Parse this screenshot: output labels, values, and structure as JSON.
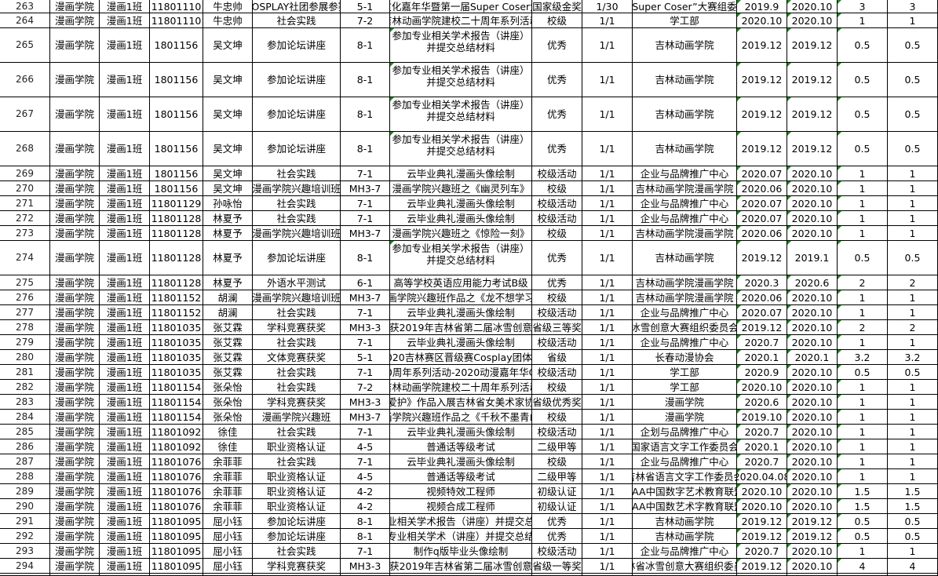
{
  "sheet": {
    "marker_color": "#1a8a1a",
    "rows": [
      [
        "263",
        "漫画学院",
        "漫画1班",
        "11801110",
        "牛忠帅",
        "COSPLAY社团参展参赛",
        "5-1",
        "文化嘉年华暨第一届Super Coser大",
        "国家级金奖",
        "1/30",
        "Super Coser”大赛组委",
        "2019.9",
        "2020.10",
        "3",
        "3"
      ],
      [
        "264",
        "漫画学院",
        "漫画1班",
        "11801110",
        "牛忠帅",
        "社会实践",
        "7-2",
        "吉林动画学院建校二十周年系列活动",
        "校级",
        "1/1",
        "学工部",
        "2020.10",
        "2020.10",
        "1",
        "1"
      ],
      [
        "265",
        "漫画学院",
        "漫画1班",
        "1801156",
        "吴文坤",
        "参加论坛讲座",
        "8-1",
        "参加专业相关学术报告（讲座）\n并提交总结材料",
        "优秀",
        "1/1",
        "吉林动画学院",
        "2019.12",
        "2019.12",
        "0.5",
        "0.5"
      ],
      [
        "266",
        "漫画学院",
        "漫画1班",
        "1801156",
        "吴文坤",
        "参加论坛讲座",
        "8-1",
        "参加专业相关学术报告（讲座）\n并提交总结材料",
        "优秀",
        "1/1",
        "吉林动画学院",
        "2019.12",
        "2019.12",
        "0.5",
        "0.5"
      ],
      [
        "267",
        "漫画学院",
        "漫画1班",
        "1801156",
        "吴文坤",
        "参加论坛讲座",
        "8-1",
        "参加专业相关学术报告（讲座）\n并提交总结材料",
        "优秀",
        "1/1",
        "吉林动画学院",
        "2019.12",
        "2019.12",
        "0.5",
        "0.5"
      ],
      [
        "268",
        "漫画学院",
        "漫画1班",
        "1801156",
        "吴文坤",
        "参加论坛讲座",
        "8-1",
        "参加专业相关学术报告（讲座）\n并提交总结材料",
        "优秀",
        "1/1",
        "吉林动画学院",
        "2019.12",
        "2019.12",
        "0.5",
        "0.5"
      ],
      [
        "269",
        "漫画学院",
        "漫画1班",
        "1801156",
        "吴文坤",
        "社会实践",
        "7-1",
        "云毕业典礼漫画头像绘制",
        "校级活动",
        "1/1",
        "企业与品牌推广中心",
        "2020.07",
        "2020.10",
        "1",
        "1"
      ],
      [
        "270",
        "漫画学院",
        "漫画1班",
        "1801156",
        "吴文坤",
        "漫画学院兴趣培训班",
        "MH3-7",
        "漫画学院兴趣班之《幽灵列车》",
        "校级",
        "1/1",
        "吉林动画学院漫画学院",
        "2020.06",
        "2020.10",
        "1",
        "1"
      ],
      [
        "271",
        "漫画学院",
        "漫画1班",
        "11801129",
        "孙咏怡",
        "社会实践",
        "7-1",
        "云毕业典礼漫画头像绘制",
        "校级活动",
        "1/1",
        "企业与品牌推广中心",
        "2020.07",
        "2020.10",
        "1",
        "1"
      ],
      [
        "272",
        "漫画学院",
        "漫画1班",
        "11801128",
        "林夏予",
        "社会实践",
        "7-1",
        "云毕业典礼漫画头像绘制",
        "校级活动",
        "1/1",
        "企业与品牌推广中心",
        "2020.07",
        "2020.10",
        "1",
        "1"
      ],
      [
        "273",
        "漫画学院",
        "漫画1班",
        "11801128",
        "林夏予",
        "漫画学院兴趣培训班",
        "MH3-7",
        "漫画学院兴趣班之《惊险一刻》",
        "校级",
        "1/1",
        "吉林动画学院漫画学院",
        "2020.06",
        "2020.10",
        "1",
        "1"
      ],
      [
        "274",
        "漫画学院",
        "漫画1班",
        "11801128",
        "林夏予",
        "参加论坛讲座",
        "8-1",
        "参加专业相关学术报告（讲座）\n并提交总结材料",
        "优秀",
        "1/1",
        "吉林动画学院",
        "2019.12",
        "2019.1",
        "0.5",
        "0.5"
      ],
      [
        "275",
        "漫画学院",
        "漫画1班",
        "11801128",
        "林夏予",
        "外语水平测试",
        "6-1",
        "高等学校英语应用能力考试B级",
        "优秀",
        "1/1",
        "吉林动画学院漫画学院",
        "2020.3",
        "2020.6",
        "2",
        "2"
      ],
      [
        "276",
        "漫画学院",
        "漫画1班",
        "11801152",
        "胡澜",
        "漫画学院兴趣培训班",
        "MH3-7",
        "漫画学院兴趣班作品之《龙不想学习》",
        "校级",
        "1/1",
        "吉林动画学院漫画学院",
        "2020.06",
        "2020.10",
        "1",
        "1"
      ],
      [
        "277",
        "漫画学院",
        "漫画1班",
        "11801152",
        "胡澜",
        "社会实践",
        "7-1",
        "云毕业典礼漫画头像绘制",
        "校级活动",
        "1/1",
        "企业与品牌推广中心",
        "2020.07",
        "2020.10",
        "1",
        "1"
      ],
      [
        "278",
        "漫画学院",
        "漫画1班",
        "11801035",
        "张艾霖",
        "学科竞赛获奖",
        "MH3-3",
        "作品获2019年吉林省第二届冰雪创意大赛",
        "省级三等奖",
        "1/1",
        "冰雪创意大赛组织委员会",
        "2019.12",
        "2020.10",
        "2",
        "2"
      ],
      [
        "279",
        "漫画学院",
        "漫画1班",
        "11801035",
        "张艾霖",
        "社会实践",
        "7-1",
        "云毕业典礼漫画头像绘制",
        "校级活动",
        "1/1",
        "企业与品牌推广中心",
        "2020.7",
        "2020.10",
        "1",
        "1"
      ],
      [
        "280",
        "漫画学院",
        "漫画1班",
        "11801035",
        "张艾霖",
        "文体竞赛获奖",
        "5-1",
        "2020吉林赛区晋级赛Cosplay团体赛",
        "省级",
        "1/1",
        "长春动漫协会",
        "2020.1",
        "2020.1",
        "3.2",
        "3.2"
      ],
      [
        "281",
        "漫画学院",
        "漫画1班",
        "11801035",
        "张艾霖",
        "社会实践",
        "7-1",
        "20周年系列活动-2020动漫嘉年华Co",
        "校级活动",
        "1/1",
        "学工部",
        "2020.9",
        "2020.10",
        "0.5",
        "0.5"
      ],
      [
        "282",
        "漫画学院",
        "漫画1班",
        "11801154",
        "张朵怡",
        "社会实践",
        "7-2",
        "吉林动画学院建校二十周年系列活动",
        "校级",
        "1/1",
        "学工部",
        "2020.10",
        "2020.10",
        "1",
        "1"
      ],
      [
        "283",
        "漫画学院",
        "漫画1班",
        "11801154",
        "张朵怡",
        "学科竞赛获奖",
        "MH3-3",
        "《爱护》作品入展吉林省女美术家协会",
        "省级优秀奖",
        "1/1",
        "漫画学院",
        "2020.6",
        "2020.10",
        "1",
        "1"
      ],
      [
        "284",
        "漫画学院",
        "漫画1班",
        "11801154",
        "张朵怡",
        "漫画学院兴趣班",
        "MH3-7",
        "漫画学院兴趣班作品之《千秋不墨青山》",
        "校级",
        "1/1",
        "漫画学院",
        "2019.10",
        "2020.10",
        "1",
        "1"
      ],
      [
        "285",
        "漫画学院",
        "漫画1班",
        "11801092",
        "徐佳",
        "社会实践",
        "7-1",
        "云毕业典礼漫画头像绘制",
        "校级活动",
        "1/1",
        "企划与品牌推广中心",
        "2020.7",
        "2020.10",
        "1",
        "1"
      ],
      [
        "286",
        "漫画学院",
        "漫画1班",
        "11801092",
        "徐佳",
        "职业资格认证",
        "4-5",
        "普通话等级考试",
        "二级甲等",
        "1/1",
        "国家语言文字工作委员会",
        "2020.1",
        "2020.10",
        "1",
        "1"
      ],
      [
        "287",
        "漫画学院",
        "漫画1班",
        "11801076",
        "余菲菲",
        "社会实践",
        "7-1",
        "云毕业典礼漫画头像绘制",
        "校级",
        "1/1",
        "企业与品牌推广中心",
        "2020.7",
        "2020.10",
        "1",
        "1"
      ],
      [
        "288",
        "漫画学院",
        "漫画1班",
        "11801076",
        "余菲菲",
        "职业资格认证",
        "4-5",
        "普通话等级考试",
        "二级甲等",
        "1/1",
        "吉林省语言文字工作委员会",
        "2020.04.08",
        "2020.10",
        "1",
        "1"
      ],
      [
        "289",
        "漫画学院",
        "漫画1班",
        "11801076",
        "余菲菲",
        "职业资格认证",
        "4-2",
        "视频特效工程师",
        "初级认证",
        "1/1",
        "CAA中国数字艺术教育联盟",
        "2020.10",
        "2020.10",
        "1.5",
        "1.5"
      ],
      [
        "290",
        "漫画学院",
        "漫画1班",
        "11801076",
        "余菲菲",
        "职业资格认证",
        "4-2",
        "视频合成工程师",
        "初级认证",
        "1/1",
        "CAA中国数艺术字教育联盟",
        "2020.10",
        "2020.10",
        "1.5",
        "1.5"
      ],
      [
        "291",
        "漫画学院",
        "漫画1班",
        "11801095",
        "屈小钰",
        "参加论坛讲座",
        "8-1",
        "参加专业相关学术报告（讲座）并提交总结材料",
        "优秀",
        "1/1",
        "吉林动画学院",
        "2019.12",
        "2019.12",
        "0.5",
        "0.5"
      ],
      [
        "292",
        "漫画学院",
        "漫画1班",
        "11801095",
        "屈小钰",
        "参加论坛讲座",
        "8-1",
        "参加专业相关学术（讲座）并提交总结材料",
        "优秀",
        "1/1",
        "吉林动画学院",
        "2019.12",
        "2019.12",
        "0.5",
        "0.5"
      ],
      [
        "293",
        "漫画学院",
        "漫画1班",
        "11801095",
        "屈小钰",
        "社会实践",
        "7-1",
        "制作q版毕业头像绘制",
        "校级活动",
        "1/1",
        "企业与品牌推广中心",
        "2020.7",
        "2020.10",
        "1",
        "1"
      ],
      [
        "294",
        "漫画学院",
        "漫画1班",
        "11801095",
        "屈小钰",
        "学科竞赛获奖",
        "MH3-3",
        "作品获2019年吉林省第二届冰雪创意大赛",
        "省级一等奖",
        "1/1",
        "吉林省冰雪创意大赛组织委员会",
        "2019.12",
        "2020.10",
        "4",
        "4"
      ]
    ]
  }
}
